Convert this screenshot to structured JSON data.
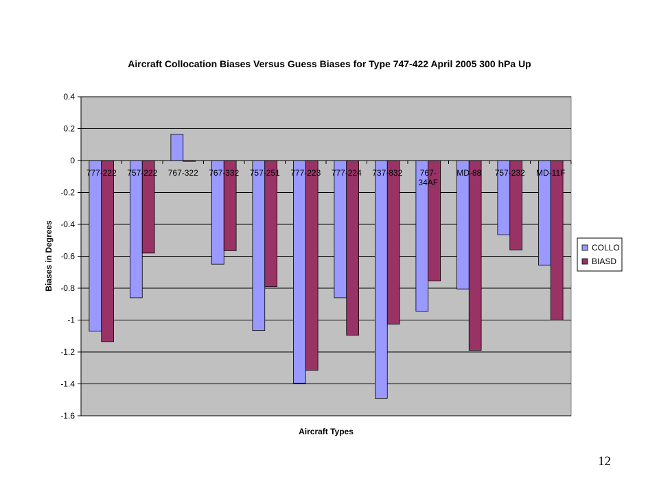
{
  "page_number": "12",
  "chart_data": {
    "type": "bar",
    "title": "Aircraft Collocation Biases Versus Guess Biases for Type 747-422 April 2005 300 hPa Up",
    "xlabel": "Aircraft Types",
    "ylabel": "Biases in Degrees",
    "ylim": [
      -1.6,
      0.4
    ],
    "yticks": [
      "0.4",
      "0.2",
      "0",
      "-0.2",
      "-0.4",
      "-0.6",
      "-0.8",
      "-1",
      "-1.2",
      "-1.4",
      "-1.6"
    ],
    "grid": true,
    "legend_position": "right",
    "plot_background": "#C0C0C0",
    "categories": [
      "777-222",
      "757-222",
      "767-322",
      "767-332",
      "757-251",
      "777-223",
      "777-224",
      "737-832",
      "767-34AF",
      "MD-88",
      "757-232",
      "MD-11F"
    ],
    "category_label_lines": [
      [
        "777-222"
      ],
      [
        "757-222"
      ],
      [
        "767-322"
      ],
      [
        "767-332"
      ],
      [
        "757-251"
      ],
      [
        "777-223"
      ],
      [
        "777-224"
      ],
      [
        "737-832"
      ],
      [
        "767-",
        "34AF"
      ],
      [
        "MD-88"
      ],
      [
        "757-232"
      ],
      [
        "MD-11F"
      ]
    ],
    "series": [
      {
        "name": "COLLO",
        "color": "#9999FF",
        "values": [
          -1.07,
          -0.86,
          0.165,
          -0.65,
          -1.065,
          -1.395,
          -0.86,
          -1.49,
          -0.945,
          -0.805,
          -0.465,
          -0.655
        ]
      },
      {
        "name": "BIASD",
        "color": "#993366",
        "values": [
          -1.135,
          -0.58,
          -0.005,
          -0.565,
          -0.79,
          -1.315,
          -1.095,
          -1.025,
          -0.755,
          -1.19,
          -0.56,
          -1.0
        ]
      }
    ]
  }
}
